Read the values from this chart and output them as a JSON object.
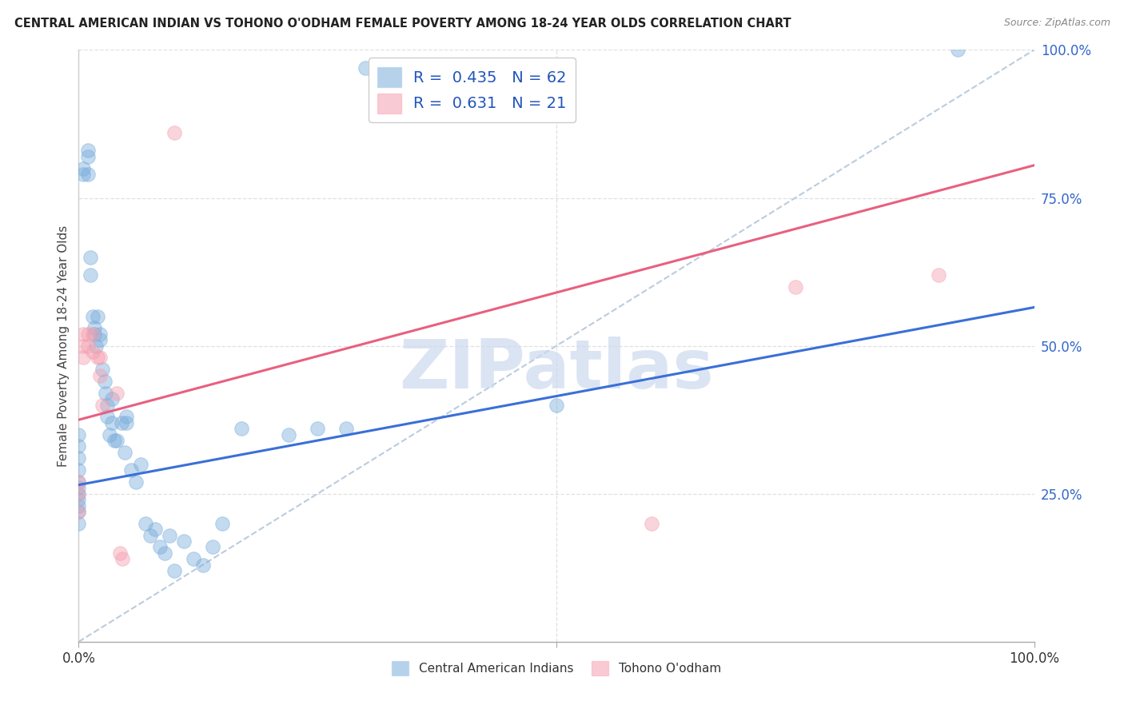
{
  "title": "CENTRAL AMERICAN INDIAN VS TOHONO O'ODHAM FEMALE POVERTY AMONG 18-24 YEAR OLDS CORRELATION CHART",
  "source": "Source: ZipAtlas.com",
  "ylabel": "Female Poverty Among 18-24 Year Olds",
  "background_color": "#ffffff",
  "grid_color": "#e0e0e0",
  "watermark_text": "ZIPatlas",
  "watermark_color": "#ccd9ee",
  "blue_r": 0.435,
  "blue_n": 62,
  "pink_r": 0.631,
  "pink_n": 21,
  "blue_label": "Central American Indians",
  "pink_label": "Tohono O'odham",
  "blue_color": "#7aaddc",
  "pink_color": "#f4a0b0",
  "blue_line_color": "#3a6fd8",
  "pink_line_color": "#e86080",
  "diag_color": "#bbccdd",
  "xlim": [
    0.0,
    1.0
  ],
  "ylim": [
    0.0,
    1.0
  ],
  "blue_line_x0": 0.0,
  "blue_line_y0": 0.265,
  "blue_line_x1": 1.0,
  "blue_line_y1": 0.565,
  "pink_line_x0": 0.0,
  "pink_line_y0": 0.375,
  "pink_line_x1": 1.0,
  "pink_line_y1": 0.805,
  "blue_scatter": [
    [
      0.0,
      0.27
    ],
    [
      0.0,
      0.29
    ],
    [
      0.0,
      0.31
    ],
    [
      0.0,
      0.22
    ],
    [
      0.0,
      0.25
    ],
    [
      0.0,
      0.26
    ],
    [
      0.0,
      0.24
    ],
    [
      0.0,
      0.23
    ],
    [
      0.0,
      0.2
    ],
    [
      0.0,
      0.33
    ],
    [
      0.0,
      0.35
    ],
    [
      0.005,
      0.8
    ],
    [
      0.005,
      0.79
    ],
    [
      0.01,
      0.83
    ],
    [
      0.01,
      0.82
    ],
    [
      0.01,
      0.79
    ],
    [
      0.012,
      0.62
    ],
    [
      0.012,
      0.65
    ],
    [
      0.015,
      0.55
    ],
    [
      0.016,
      0.52
    ],
    [
      0.016,
      0.53
    ],
    [
      0.018,
      0.5
    ],
    [
      0.02,
      0.55
    ],
    [
      0.022,
      0.51
    ],
    [
      0.022,
      0.52
    ],
    [
      0.025,
      0.46
    ],
    [
      0.027,
      0.44
    ],
    [
      0.028,
      0.42
    ],
    [
      0.03,
      0.4
    ],
    [
      0.03,
      0.38
    ],
    [
      0.032,
      0.35
    ],
    [
      0.035,
      0.37
    ],
    [
      0.035,
      0.41
    ],
    [
      0.037,
      0.34
    ],
    [
      0.04,
      0.34
    ],
    [
      0.045,
      0.37
    ],
    [
      0.048,
      0.32
    ],
    [
      0.05,
      0.37
    ],
    [
      0.05,
      0.38
    ],
    [
      0.055,
      0.29
    ],
    [
      0.06,
      0.27
    ],
    [
      0.065,
      0.3
    ],
    [
      0.07,
      0.2
    ],
    [
      0.075,
      0.18
    ],
    [
      0.08,
      0.19
    ],
    [
      0.085,
      0.16
    ],
    [
      0.09,
      0.15
    ],
    [
      0.095,
      0.18
    ],
    [
      0.1,
      0.12
    ],
    [
      0.11,
      0.17
    ],
    [
      0.12,
      0.14
    ],
    [
      0.13,
      0.13
    ],
    [
      0.14,
      0.16
    ],
    [
      0.15,
      0.2
    ],
    [
      0.17,
      0.36
    ],
    [
      0.22,
      0.35
    ],
    [
      0.25,
      0.36
    ],
    [
      0.28,
      0.36
    ],
    [
      0.3,
      0.97
    ],
    [
      0.32,
      0.97
    ],
    [
      0.5,
      0.4
    ],
    [
      0.92,
      1.0
    ]
  ],
  "pink_scatter": [
    [
      0.0,
      0.27
    ],
    [
      0.0,
      0.25
    ],
    [
      0.0,
      0.22
    ],
    [
      0.005,
      0.52
    ],
    [
      0.005,
      0.5
    ],
    [
      0.005,
      0.48
    ],
    [
      0.01,
      0.52
    ],
    [
      0.01,
      0.5
    ],
    [
      0.015,
      0.52
    ],
    [
      0.015,
      0.49
    ],
    [
      0.02,
      0.48
    ],
    [
      0.022,
      0.45
    ],
    [
      0.022,
      0.48
    ],
    [
      0.025,
      0.4
    ],
    [
      0.04,
      0.42
    ],
    [
      0.043,
      0.15
    ],
    [
      0.046,
      0.14
    ],
    [
      0.1,
      0.86
    ],
    [
      0.6,
      0.2
    ],
    [
      0.75,
      0.6
    ],
    [
      0.9,
      0.62
    ]
  ],
  "xtick_positions": [
    0.0,
    0.5,
    1.0
  ],
  "xtick_labels": [
    "0.0%",
    "",
    "100.0%"
  ],
  "ytick_right_positions": [
    0.25,
    0.5,
    0.75,
    1.0
  ],
  "ytick_right_labels": [
    "25.0%",
    "50.0%",
    "75.0%",
    "100.0%"
  ]
}
